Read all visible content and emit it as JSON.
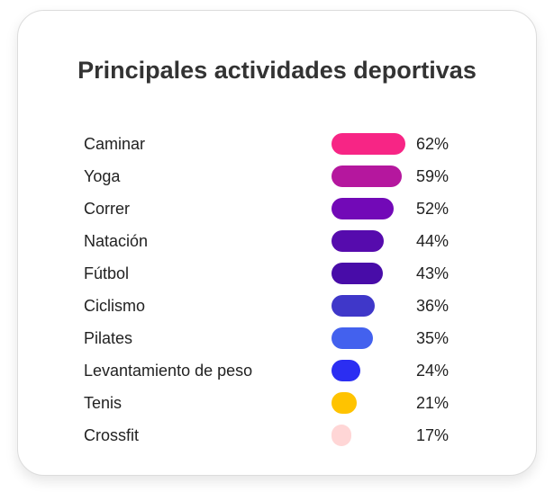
{
  "chart_data": {
    "type": "bar",
    "title": "Principales actividades deportivas",
    "orientation": "horizontal",
    "categories": [
      "Caminar",
      "Yoga",
      "Correr",
      "Natación",
      "Fútbol",
      "Ciclismo",
      "Pilates",
      "Levantamiento de peso",
      "Tenis",
      "Crossfit"
    ],
    "values": [
      62,
      59,
      52,
      44,
      43,
      36,
      35,
      24,
      21,
      17
    ],
    "value_labels": [
      "62%",
      "59%",
      "52%",
      "44%",
      "43%",
      "36%",
      "35%",
      "24%",
      "21%",
      "17%"
    ],
    "colors": [
      "#f72585",
      "#b5179e",
      "#7209b7",
      "#560bad",
      "#480ca8",
      "#3f37c9",
      "#4361ee",
      "#2b2ef2",
      "#ffc300",
      "#ffd6d6"
    ],
    "legend": "none",
    "grid": false
  }
}
